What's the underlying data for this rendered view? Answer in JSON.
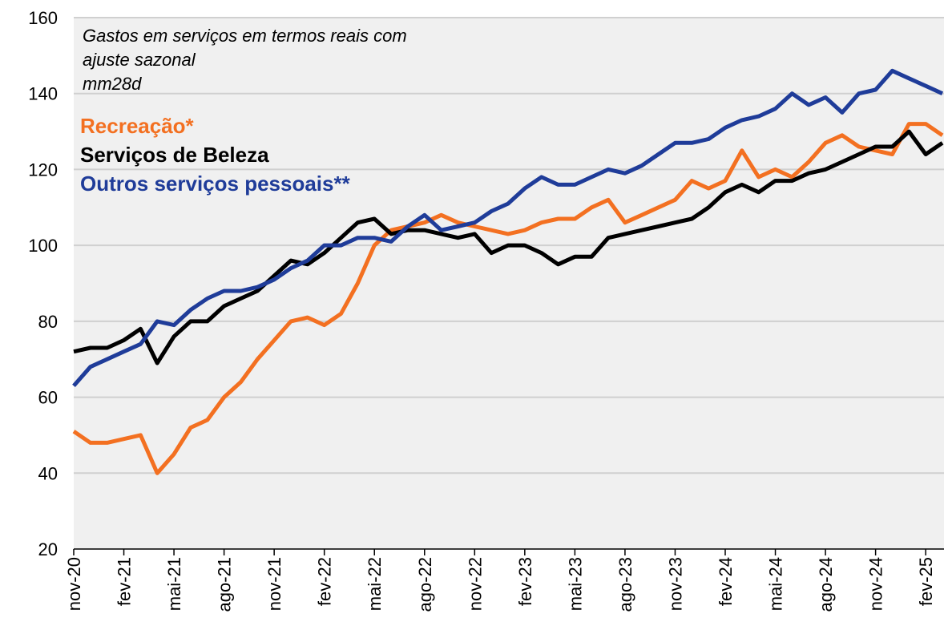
{
  "chart_data": {
    "type": "line",
    "title": [
      "Gastos em serviços em termos reais  com",
      "ajuste sazonal"
    ],
    "subtitle": "mm28d",
    "categories": [
      "nov-20",
      null,
      null,
      "fev-21",
      null,
      null,
      "mai-21",
      null,
      null,
      "ago-21",
      null,
      null,
      "nov-21",
      null,
      null,
      "fev-22",
      null,
      null,
      "mai-22",
      null,
      null,
      "ago-22",
      null,
      null,
      "nov-22",
      null,
      null,
      "fev-23",
      null,
      null,
      "mai-23",
      null,
      null,
      "ago-23",
      null,
      null,
      "nov-23",
      null,
      null,
      "fev-24",
      null,
      null,
      "mai-24",
      null,
      null,
      "ago-24",
      null,
      null,
      "nov-24",
      null,
      null,
      "fev-25",
      null
    ],
    "series": [
      {
        "name": "Recreação*",
        "color": "#f37021",
        "values": [
          51,
          48,
          48,
          49,
          50,
          40,
          45,
          52,
          54,
          60,
          64,
          70,
          75,
          80,
          81,
          79,
          82,
          90,
          100,
          104,
          105,
          106,
          108,
          106,
          105,
          104,
          103,
          104,
          106,
          107,
          107,
          110,
          112,
          106,
          108,
          110,
          112,
          117,
          115,
          117,
          125,
          118,
          120,
          118,
          122,
          127,
          129,
          126,
          125,
          124,
          132,
          132,
          129
        ]
      },
      {
        "name": "Serviços de Beleza",
        "color": "#000000",
        "values": [
          72,
          73,
          73,
          75,
          78,
          69,
          76,
          80,
          80,
          84,
          86,
          88,
          92,
          96,
          95,
          98,
          102,
          106,
          107,
          103,
          104,
          104,
          103,
          102,
          103,
          98,
          100,
          100,
          98,
          95,
          97,
          97,
          102,
          103,
          104,
          105,
          106,
          107,
          110,
          114,
          116,
          114,
          117,
          117,
          119,
          120,
          122,
          124,
          126,
          126,
          130,
          124,
          127
        ]
      },
      {
        "name": "Outros serviços pessoais**",
        "color": "#1f3c99",
        "values": [
          63,
          68,
          70,
          72,
          74,
          80,
          79,
          83,
          86,
          88,
          88,
          89,
          91,
          94,
          96,
          100,
          100,
          102,
          102,
          101,
          105,
          108,
          104,
          105,
          106,
          109,
          111,
          115,
          118,
          116,
          116,
          118,
          120,
          119,
          121,
          124,
          127,
          127,
          128,
          131,
          133,
          134,
          136,
          140,
          137,
          139,
          135,
          140,
          141,
          146,
          144,
          142,
          140
        ]
      }
    ],
    "ylim": [
      20,
      160
    ],
    "yticks": [
      20,
      40,
      60,
      80,
      100,
      120,
      140,
      160
    ],
    "grid": true
  }
}
